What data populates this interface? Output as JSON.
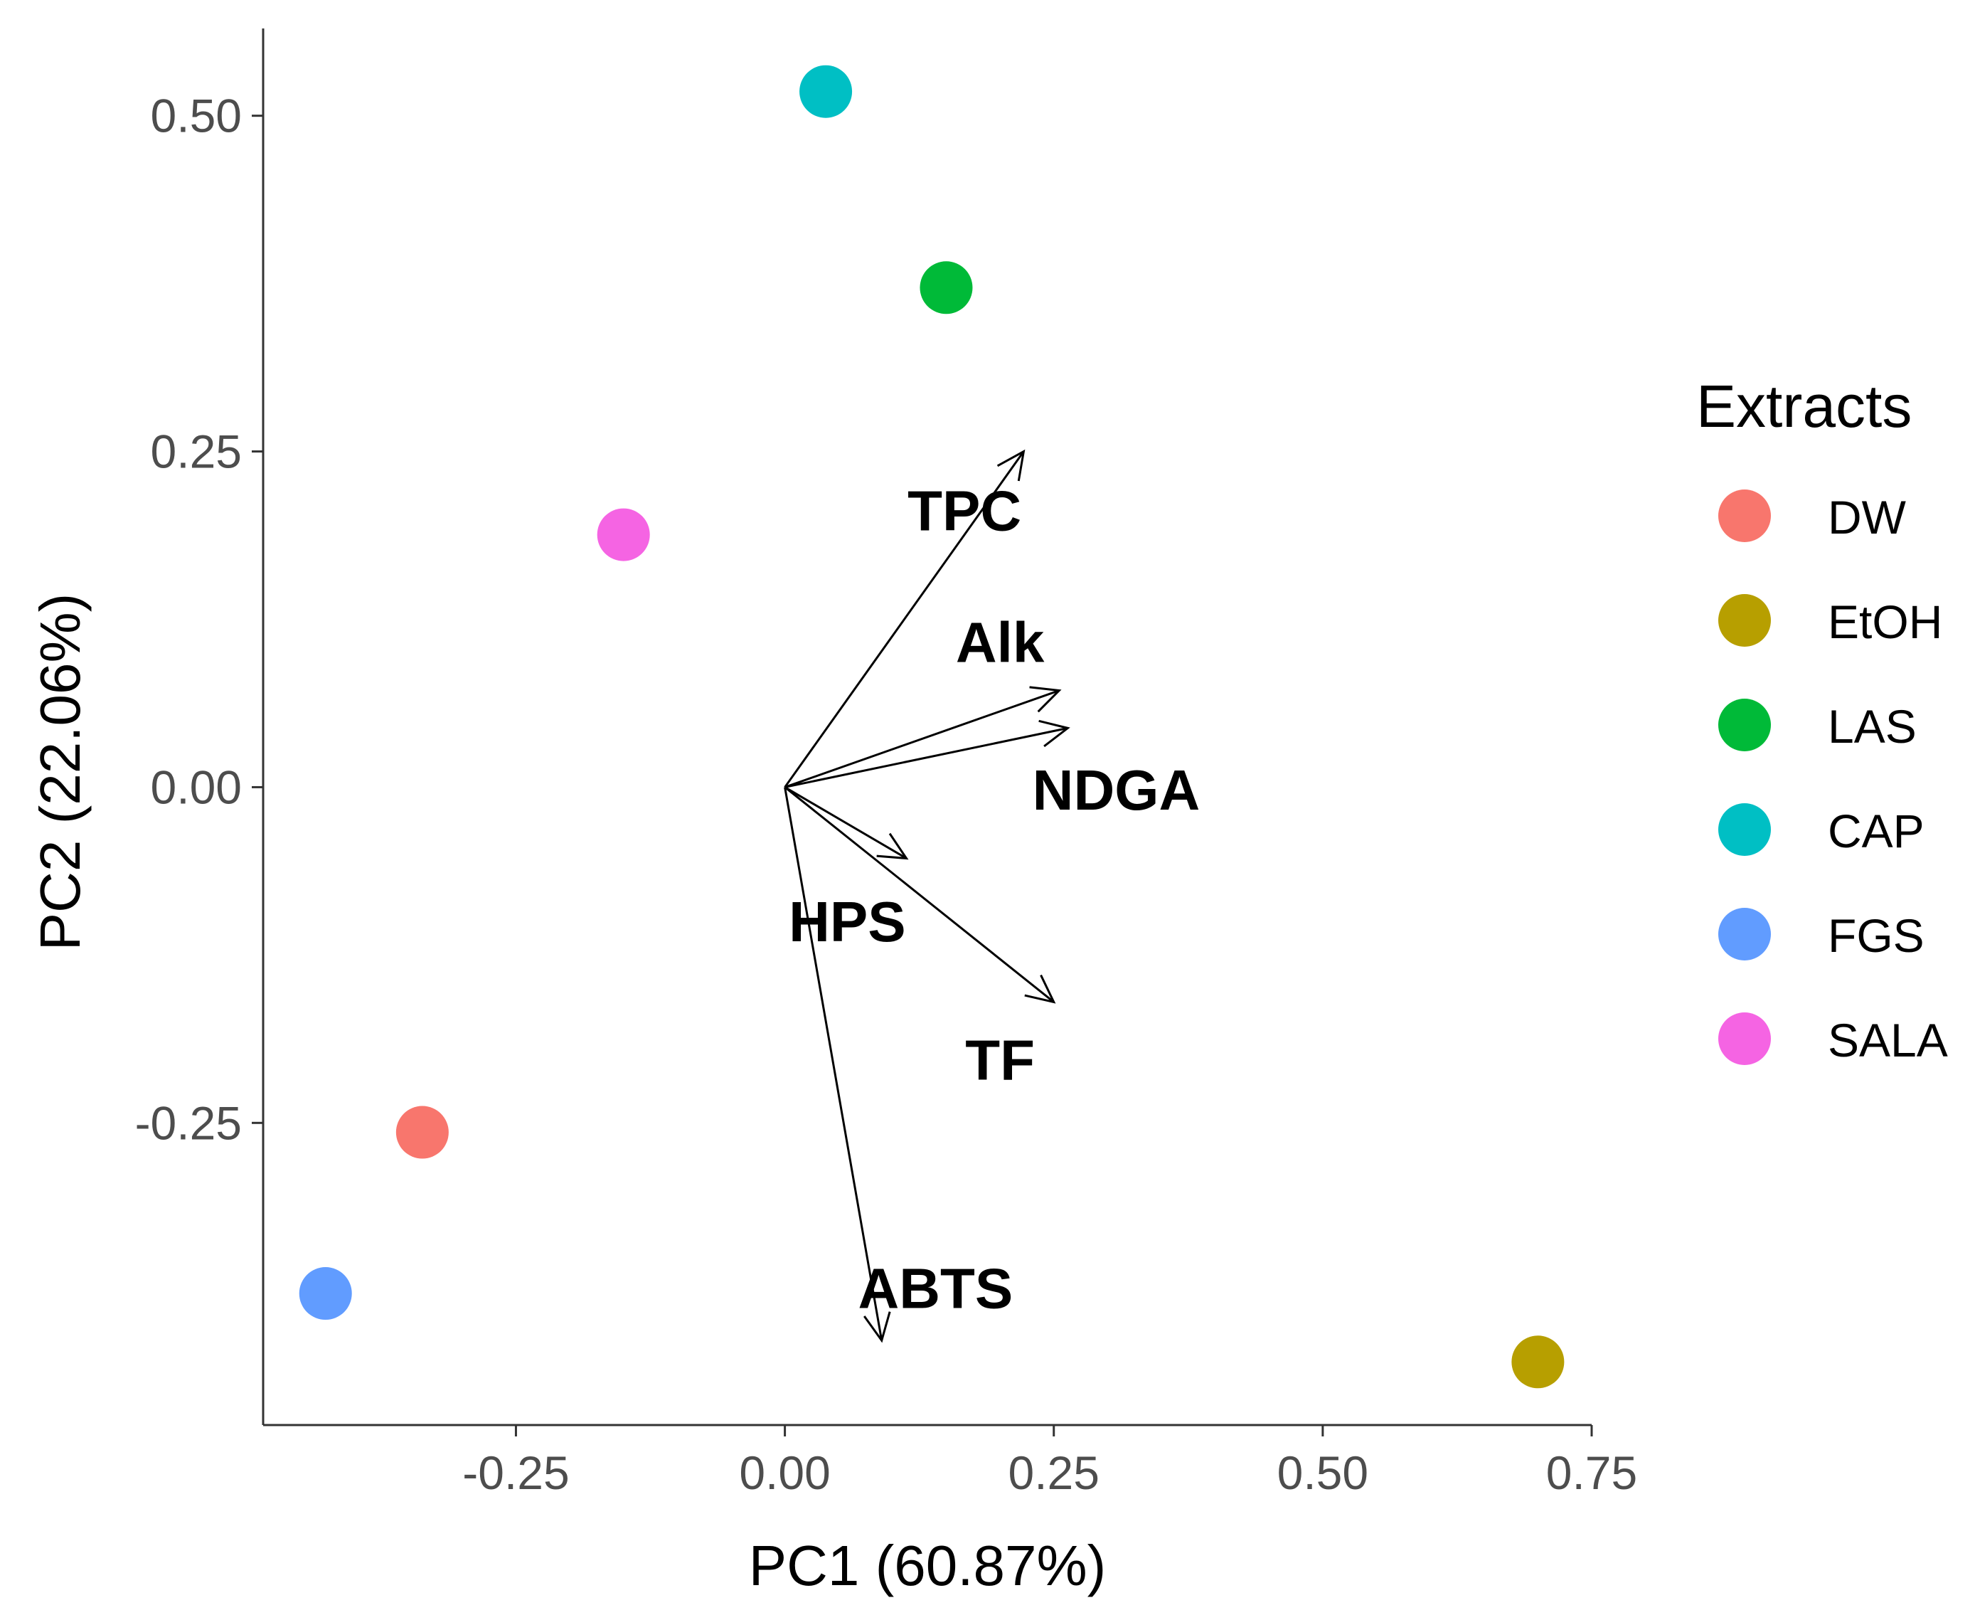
{
  "chart_data": {
    "type": "scatter",
    "subtype": "pca-biplot",
    "xlabel": "PC1 (60.87%)",
    "ylabel": "PC2 (22.06%)",
    "xlim": [
      -0.485,
      0.75
    ],
    "ylim": [
      -0.475,
      0.565
    ],
    "x_ticks": [
      -0.25,
      0.0,
      0.25,
      0.5,
      0.75
    ],
    "x_tick_labels": [
      "-0.25",
      "0.00",
      "0.25",
      "0.50",
      "0.75"
    ],
    "y_ticks": [
      -0.25,
      0.0,
      0.25,
      0.5
    ],
    "y_tick_labels": [
      "-0.25",
      "0.00",
      "0.25",
      "0.50"
    ],
    "grid": false,
    "legend": {
      "title": "Extracts",
      "position": "right",
      "entries": [
        {
          "name": "DW",
          "color": "#F8766D"
        },
        {
          "name": "EtOH",
          "color": "#B79F00"
        },
        {
          "name": "LAS",
          "color": "#00BA38"
        },
        {
          "name": "CAP",
          "color": "#00BFC4"
        },
        {
          "name": "FGS",
          "color": "#619CFF"
        },
        {
          "name": "SALA",
          "color": "#F564E3"
        }
      ]
    },
    "points": [
      {
        "name": "DW",
        "x": -0.337,
        "y": -0.257
      },
      {
        "name": "EtOH",
        "x": 0.7,
        "y": -0.428
      },
      {
        "name": "LAS",
        "x": 0.15,
        "y": 0.372
      },
      {
        "name": "CAP",
        "x": 0.038,
        "y": 0.518
      },
      {
        "name": "FGS",
        "x": -0.427,
        "y": -0.377
      },
      {
        "name": "SALA",
        "x": -0.15,
        "y": 0.188
      }
    ],
    "loadings": [
      {
        "name": "TPC",
        "x": 0.222,
        "y": 0.25,
        "label_x": 0.167,
        "label_y": 0.206
      },
      {
        "name": "Alk",
        "x": 0.255,
        "y": 0.072,
        "label_x": 0.2,
        "label_y": 0.108
      },
      {
        "name": "NDGA",
        "x": 0.263,
        "y": 0.044,
        "label_x": 0.308,
        "label_y": -0.002
      },
      {
        "name": "HPS",
        "x": 0.113,
        "y": -0.053,
        "label_x": 0.058,
        "label_y": -0.1
      },
      {
        "name": "TF",
        "x": 0.25,
        "y": -0.16,
        "label_x": 0.2,
        "label_y": -0.203
      },
      {
        "name": "ABTS",
        "x": 0.09,
        "y": -0.412,
        "label_x": 0.14,
        "label_y": -0.373
      }
    ]
  }
}
